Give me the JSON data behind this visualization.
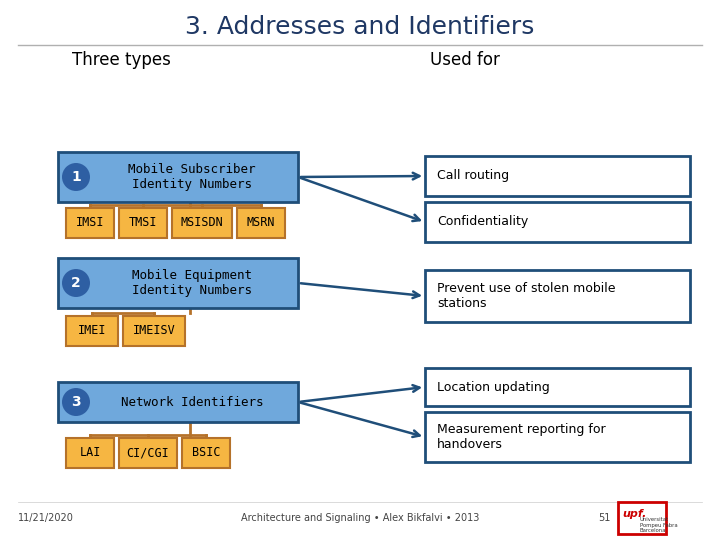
{
  "title": "3. Addresses and Identifiers",
  "left_header": "Three types",
  "right_header": "Used for",
  "bg_color": "#ffffff",
  "title_color": "#1f3864",
  "header_color": "#000000",
  "blue_box_color": "#6fa8dc",
  "blue_box_edge": "#1f4e79",
  "number_circle_color": "#2e5fa3",
  "orange_box_color": "#f6b642",
  "orange_box_edge": "#b5722a",
  "right_box_color": "#ffffff",
  "right_box_edge": "#1f4e79",
  "arrow_color": "#1f4e79",
  "footer_date": "11/21/2020",
  "footer_center": "Architecture and Signaling • Alex Bikfalvi • 2013",
  "footer_page": "51"
}
